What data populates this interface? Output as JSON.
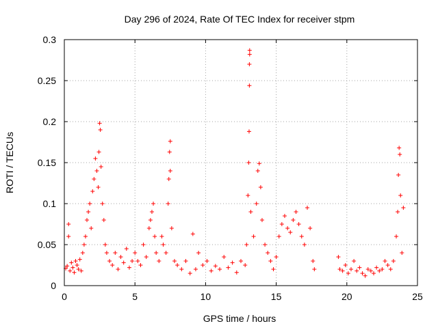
{
  "chart_data": {
    "type": "scatter",
    "title": "Day 296 of 2024, Rate Of TEC Index for receiver stpm",
    "xlabel": "GPS time / hours",
    "ylabel": "ROTI / TECUs",
    "xlim": [
      0,
      25
    ],
    "ylim": [
      0,
      0.3
    ],
    "xticks": [
      0,
      5,
      10,
      15,
      20,
      25
    ],
    "xtick_labels": [
      "0",
      "5",
      "10",
      "15",
      "20",
      "25"
    ],
    "yticks": [
      0,
      0.05,
      0.1,
      0.15,
      0.2,
      0.25,
      0.3
    ],
    "ytick_labels": [
      "0",
      "0.05",
      "0.1",
      "0.15",
      "0.2",
      "0.25",
      "0.3"
    ],
    "grid": true,
    "marker": "plus",
    "color": "#ff0000",
    "series": [
      {
        "name": "ROTI",
        "points": [
          [
            0.1,
            0.021
          ],
          [
            0.2,
            0.024
          ],
          [
            0.3,
            0.06
          ],
          [
            0.3,
            0.075
          ],
          [
            0.4,
            0.018
          ],
          [
            0.5,
            0.028
          ],
          [
            0.6,
            0.022
          ],
          [
            0.7,
            0.016
          ],
          [
            0.8,
            0.03
          ],
          [
            0.9,
            0.025
          ],
          [
            1.0,
            0.02
          ],
          [
            1.1,
            0.032
          ],
          [
            1.2,
            0.018
          ],
          [
            1.3,
            0.04
          ],
          [
            1.4,
            0.05
          ],
          [
            1.5,
            0.06
          ],
          [
            1.6,
            0.08
          ],
          [
            1.7,
            0.09
          ],
          [
            1.8,
            0.1
          ],
          [
            1.9,
            0.07
          ],
          [
            2.0,
            0.115
          ],
          [
            2.1,
            0.13
          ],
          [
            2.2,
            0.155
          ],
          [
            2.3,
            0.14
          ],
          [
            2.4,
            0.12
          ],
          [
            2.45,
            0.163
          ],
          [
            2.5,
            0.198
          ],
          [
            2.55,
            0.19
          ],
          [
            2.6,
            0.145
          ],
          [
            2.7,
            0.1
          ],
          [
            2.8,
            0.08
          ],
          [
            2.9,
            0.05
          ],
          [
            3.0,
            0.04
          ],
          [
            3.2,
            0.03
          ],
          [
            3.4,
            0.025
          ],
          [
            3.6,
            0.04
          ],
          [
            3.8,
            0.02
          ],
          [
            4.0,
            0.035
          ],
          [
            4.2,
            0.028
          ],
          [
            4.4,
            0.045
          ],
          [
            4.6,
            0.022
          ],
          [
            4.8,
            0.03
          ],
          [
            5.0,
            0.04
          ],
          [
            5.2,
            0.03
          ],
          [
            5.4,
            0.025
          ],
          [
            5.6,
            0.05
          ],
          [
            5.8,
            0.035
          ],
          [
            6.0,
            0.07
          ],
          [
            6.1,
            0.08
          ],
          [
            6.2,
            0.09
          ],
          [
            6.3,
            0.1
          ],
          [
            6.4,
            0.06
          ],
          [
            6.5,
            0.04
          ],
          [
            6.7,
            0.03
          ],
          [
            6.9,
            0.06
          ],
          [
            7.0,
            0.05
          ],
          [
            7.2,
            0.04
          ],
          [
            7.35,
            0.1
          ],
          [
            7.4,
            0.13
          ],
          [
            7.45,
            0.163
          ],
          [
            7.5,
            0.176
          ],
          [
            7.5,
            0.14
          ],
          [
            7.6,
            0.07
          ],
          [
            7.8,
            0.03
          ],
          [
            8.0,
            0.025
          ],
          [
            8.3,
            0.02
          ],
          [
            8.6,
            0.03
          ],
          [
            8.9,
            0.015
          ],
          [
            9.1,
            0.063
          ],
          [
            9.3,
            0.02
          ],
          [
            9.5,
            0.04
          ],
          [
            9.8,
            0.025
          ],
          [
            10.1,
            0.03
          ],
          [
            10.4,
            0.018
          ],
          [
            10.7,
            0.024
          ],
          [
            11.0,
            0.02
          ],
          [
            11.3,
            0.035
          ],
          [
            11.6,
            0.022
          ],
          [
            11.9,
            0.028
          ],
          [
            12.2,
            0.016
          ],
          [
            12.5,
            0.03
          ],
          [
            12.8,
            0.025
          ],
          [
            12.9,
            0.05
          ],
          [
            13.0,
            0.11
          ],
          [
            13.05,
            0.15
          ],
          [
            13.08,
            0.188
          ],
          [
            13.1,
            0.244
          ],
          [
            13.1,
            0.27
          ],
          [
            13.12,
            0.282
          ],
          [
            13.12,
            0.287
          ],
          [
            13.2,
            0.09
          ],
          [
            13.4,
            0.06
          ],
          [
            13.6,
            0.1
          ],
          [
            13.7,
            0.14
          ],
          [
            13.8,
            0.149
          ],
          [
            13.9,
            0.12
          ],
          [
            14.0,
            0.08
          ],
          [
            14.2,
            0.05
          ],
          [
            14.4,
            0.04
          ],
          [
            14.6,
            0.03
          ],
          [
            14.8,
            0.02
          ],
          [
            15.0,
            0.035
          ],
          [
            15.2,
            0.06
          ],
          [
            15.4,
            0.075
          ],
          [
            15.6,
            0.085
          ],
          [
            15.8,
            0.07
          ],
          [
            16.0,
            0.065
          ],
          [
            16.2,
            0.08
          ],
          [
            16.4,
            0.09
          ],
          [
            16.6,
            0.075
          ],
          [
            16.8,
            0.06
          ],
          [
            17.0,
            0.05
          ],
          [
            17.2,
            0.095
          ],
          [
            17.4,
            0.07
          ],
          [
            17.6,
            0.03
          ],
          [
            17.7,
            0.02
          ],
          [
            19.4,
            0.035
          ],
          [
            19.5,
            0.02
          ],
          [
            19.7,
            0.018
          ],
          [
            19.9,
            0.025
          ],
          [
            20.1,
            0.015
          ],
          [
            20.3,
            0.02
          ],
          [
            20.5,
            0.03
          ],
          [
            20.7,
            0.018
          ],
          [
            20.9,
            0.022
          ],
          [
            21.1,
            0.015
          ],
          [
            21.3,
            0.012
          ],
          [
            21.5,
            0.02
          ],
          [
            21.7,
            0.018
          ],
          [
            21.9,
            0.015
          ],
          [
            22.1,
            0.022
          ],
          [
            22.3,
            0.018
          ],
          [
            22.5,
            0.02
          ],
          [
            22.7,
            0.03
          ],
          [
            22.9,
            0.025
          ],
          [
            23.1,
            0.02
          ],
          [
            23.3,
            0.03
          ],
          [
            23.5,
            0.06
          ],
          [
            23.6,
            0.09
          ],
          [
            23.65,
            0.135
          ],
          [
            23.7,
            0.168
          ],
          [
            23.75,
            0.16
          ],
          [
            23.8,
            0.11
          ],
          [
            23.9,
            0.04
          ],
          [
            24.0,
            0.095
          ]
        ]
      }
    ]
  }
}
